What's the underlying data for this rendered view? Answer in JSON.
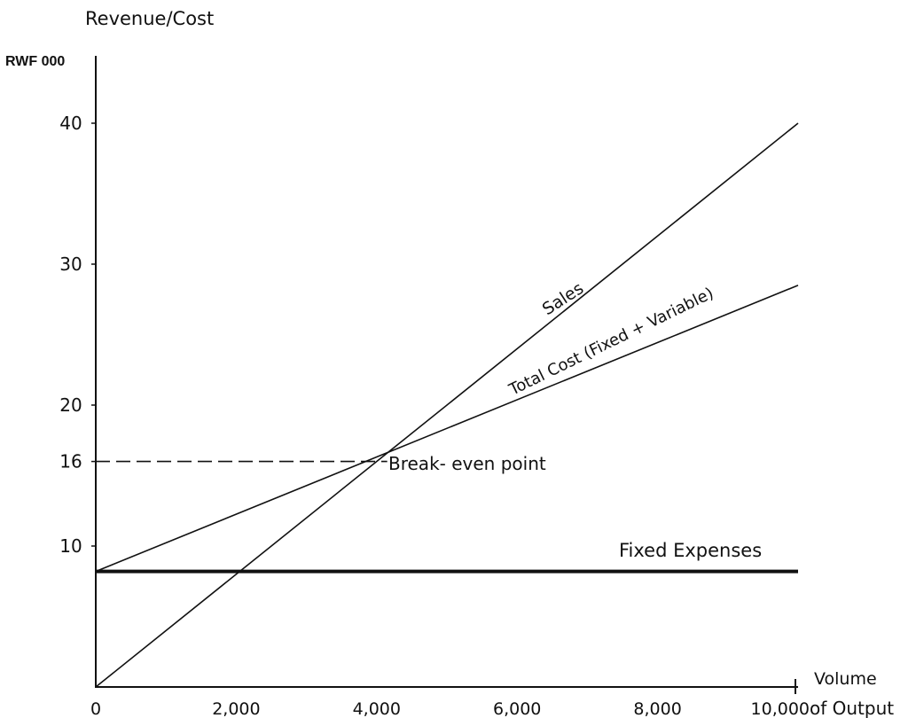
{
  "chart_data": {
    "type": "line",
    "y_axis_title": "Revenue/Cost",
    "y_unit": "RWF 000",
    "x_axis_title_line1": "Volume",
    "x_axis_title_line2": "of Output",
    "x_ticks": [
      0,
      2000,
      4000,
      6000,
      8000,
      10000
    ],
    "x_tick_labels": [
      "0",
      "2,000",
      "4,000",
      "6,000",
      "8,000",
      "10,000"
    ],
    "y_ticks": [
      10,
      16,
      20,
      30,
      40
    ],
    "y_tick_labels": [
      "10",
      "16",
      "20",
      "30",
      "40"
    ],
    "xlim": [
      0,
      10000
    ],
    "ylim": [
      0,
      44
    ],
    "grid": false,
    "series": [
      {
        "name": "Sales",
        "x": [
          0,
          10000
        ],
        "y": [
          0,
          40
        ]
      },
      {
        "name": "Total Cost (Fixed + Variable)",
        "x": [
          0,
          10000
        ],
        "y": [
          8.2,
          28.5
        ]
      },
      {
        "name": "Fixed Expenses",
        "x": [
          0,
          10000
        ],
        "y": [
          8.2,
          8.2
        ]
      }
    ],
    "annotations": [
      {
        "text": "Break- even point",
        "x": 4150,
        "y": 16
      }
    ]
  }
}
